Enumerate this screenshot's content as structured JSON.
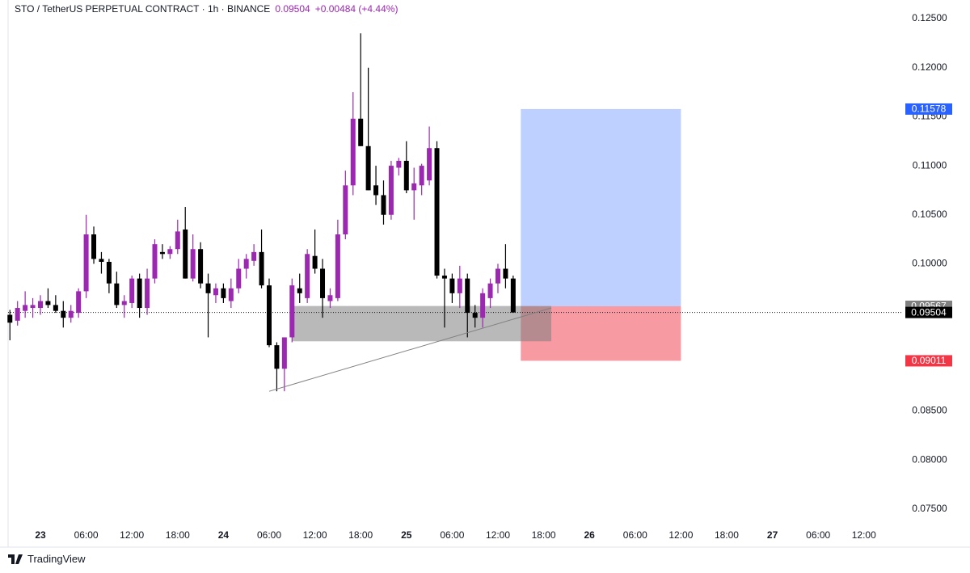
{
  "chart_data": {
    "type": "candlestick",
    "title": "STO / TetherUS PERPETUAL CONTRACT · 1h · BINANCE",
    "last_price": 0.09504,
    "change": "+0.00484 (+4.44%)",
    "brand": "TradingView",
    "up_color": "#9c27b0",
    "down_color": "#000000",
    "x": [
      -4,
      -3,
      -2,
      -1,
      0,
      1,
      2,
      3,
      4,
      5,
      6,
      7,
      8,
      9,
      10,
      11,
      12,
      13,
      14,
      15,
      16,
      17,
      18,
      19,
      20,
      21,
      22,
      23,
      24,
      25,
      26,
      27,
      28,
      29,
      30,
      31,
      32,
      33,
      34,
      35,
      36,
      37,
      38,
      39,
      40,
      41,
      42,
      43,
      44,
      45,
      46,
      47,
      48,
      49,
      50,
      51,
      52,
      53,
      54,
      55,
      56,
      57,
      58,
      59,
      60,
      61,
      62
    ],
    "open": [
      0.0948,
      0.0942,
      0.0952,
      0.0955,
      0.0955,
      0.0962,
      0.0958,
      0.0952,
      0.0945,
      0.095,
      0.0972,
      0.103,
      0.1005,
      0.1002,
      0.098,
      0.0958,
      0.096,
      0.0985,
      0.0955,
      0.0985,
      0.1012,
      0.101,
      0.1015,
      0.1035,
      0.0985,
      0.1015,
      0.098,
      0.0968,
      0.0975,
      0.0962,
      0.0975,
      0.0995,
      0.1003,
      0.1012,
      0.0978,
      0.0917,
      0.0893,
      0.0925,
      0.0975,
      0.0965,
      0.1008,
      0.0995,
      0.0962,
      0.0965,
      0.103,
      0.108,
      0.1148,
      0.112,
      0.108,
      0.107,
      0.105,
      0.1098,
      0.1105,
      0.1075,
      0.108,
      0.1085,
      0.1118,
      0.0988,
      0.0985,
      0.097,
      0.0985,
      0.095,
      0.0945,
      0.0965,
      0.098,
      0.0995,
      0.0985
    ],
    "high": [
      0.0953,
      0.0962,
      0.0972,
      0.0965,
      0.0968,
      0.0975,
      0.0968,
      0.0962,
      0.0958,
      0.0975,
      0.105,
      0.1038,
      0.1012,
      0.1005,
      0.0992,
      0.0968,
      0.0988,
      0.099,
      0.0995,
      0.1025,
      0.102,
      0.1018,
      0.1045,
      0.1058,
      0.103,
      0.1022,
      0.099,
      0.098,
      0.098,
      0.0985,
      0.1005,
      0.101,
      0.102,
      0.1035,
      0.0985,
      0.092,
      0.0925,
      0.0985,
      0.099,
      0.1015,
      0.1035,
      0.1005,
      0.0975,
      0.1045,
      0.1095,
      0.1175,
      0.1235,
      0.12,
      0.11,
      0.1085,
      0.1105,
      0.1108,
      0.1125,
      0.1098,
      0.1102,
      0.114,
      0.1125,
      0.0995,
      0.099,
      0.0998,
      0.099,
      0.0958,
      0.0975,
      0.0985,
      0.1,
      0.102,
      0.0988
    ],
    "low": [
      0.0922,
      0.0937,
      0.0945,
      0.0945,
      0.0948,
      0.0955,
      0.095,
      0.0935,
      0.094,
      0.0945,
      0.0965,
      0.1,
      0.099,
      0.097,
      0.0955,
      0.0945,
      0.0955,
      0.0945,
      0.0948,
      0.098,
      0.1005,
      0.1005,
      0.101,
      0.0985,
      0.0982,
      0.0975,
      0.0925,
      0.096,
      0.096,
      0.0955,
      0.097,
      0.0985,
      0.0998,
      0.0975,
      0.0915,
      0.087,
      0.087,
      0.092,
      0.096,
      0.096,
      0.099,
      0.0945,
      0.0955,
      0.0962,
      0.1025,
      0.107,
      0.112,
      0.1075,
      0.106,
      0.104,
      0.1045,
      0.109,
      0.1072,
      0.1045,
      0.107,
      0.108,
      0.0985,
      0.0935,
      0.096,
      0.0955,
      0.0925,
      0.0935,
      0.0935,
      0.0955,
      0.097,
      0.0975,
      0.095
    ],
    "close": [
      0.094,
      0.0955,
      0.0958,
      0.0958,
      0.0962,
      0.0958,
      0.0952,
      0.0945,
      0.0952,
      0.0972,
      0.103,
      0.1005,
      0.1002,
      0.098,
      0.0958,
      0.0962,
      0.0985,
      0.0955,
      0.0985,
      0.102,
      0.101,
      0.1015,
      0.1033,
      0.0985,
      0.1015,
      0.098,
      0.097,
      0.0975,
      0.0965,
      0.0975,
      0.0995,
      0.1005,
      0.1012,
      0.0978,
      0.0917,
      0.0893,
      0.0925,
      0.0978,
      0.097,
      0.101,
      0.0995,
      0.0965,
      0.0968,
      0.103,
      0.108,
      0.1148,
      0.112,
      0.1075,
      0.107,
      0.105,
      0.11,
      0.1105,
      0.1075,
      0.1082,
      0.11,
      0.1118,
      0.0988,
      0.0985,
      0.097,
      0.0985,
      0.095,
      0.0945,
      0.097,
      0.098,
      0.0995,
      0.0985,
      0.09504
    ],
    "zone": {
      "x": [
        33,
        67
      ],
      "y": [
        0.0921,
        0.0957
      ],
      "color": "#808080"
    },
    "trendline": {
      "x": [
        30,
        67
      ],
      "y": [
        0.087,
        0.0955
      ]
    },
    "position": {
      "x": [
        63,
        84
      ],
      "entry": 0.09567,
      "target": 0.11578,
      "stop": 0.09011,
      "target_color": "#2962ff",
      "stop_color": "#f23645"
    },
    "xlim": [
      -4.24,
      112.9
    ],
    "ylim": [
      0.0735,
      0.1269
    ],
    "xticks": [
      {
        "value": 0,
        "label": "23"
      },
      {
        "value": 6,
        "label": "06:00"
      },
      {
        "value": 12,
        "label": "12:00"
      },
      {
        "value": 18,
        "label": "18:00"
      },
      {
        "value": 24,
        "label": "24"
      },
      {
        "value": 30,
        "label": "06:00"
      },
      {
        "value": 36,
        "label": "12:00"
      },
      {
        "value": 42,
        "label": "18:00"
      },
      {
        "value": 48,
        "label": "25"
      },
      {
        "value": 54,
        "label": "06:00"
      },
      {
        "value": 60,
        "label": "12:00"
      },
      {
        "value": 66,
        "label": "18:00"
      },
      {
        "value": 72,
        "label": "26"
      },
      {
        "value": 78,
        "label": "06:00"
      },
      {
        "value": 84,
        "label": "12:00"
      },
      {
        "value": 90,
        "label": "18:00"
      },
      {
        "value": 96,
        "label": "27"
      },
      {
        "value": 102,
        "label": "06:00"
      },
      {
        "value": 108,
        "label": "12:00"
      }
    ],
    "yticks": [
      {
        "value": 0.075,
        "label": "0.07500"
      },
      {
        "value": 0.08,
        "label": "0.08000"
      },
      {
        "value": 0.085,
        "label": "0.08500"
      },
      {
        "value": 0.09,
        "label": "0.09000"
      },
      {
        "value": 0.095,
        "label": "0.09500"
      },
      {
        "value": 0.1,
        "label": "0.10000"
      },
      {
        "value": 0.105,
        "label": "0.10500"
      },
      {
        "value": 0.11,
        "label": "0.11000"
      },
      {
        "value": 0.115,
        "label": "0.11500"
      },
      {
        "value": 0.12,
        "label": "0.12000"
      },
      {
        "value": 0.125,
        "label": "0.12500"
      }
    ]
  }
}
